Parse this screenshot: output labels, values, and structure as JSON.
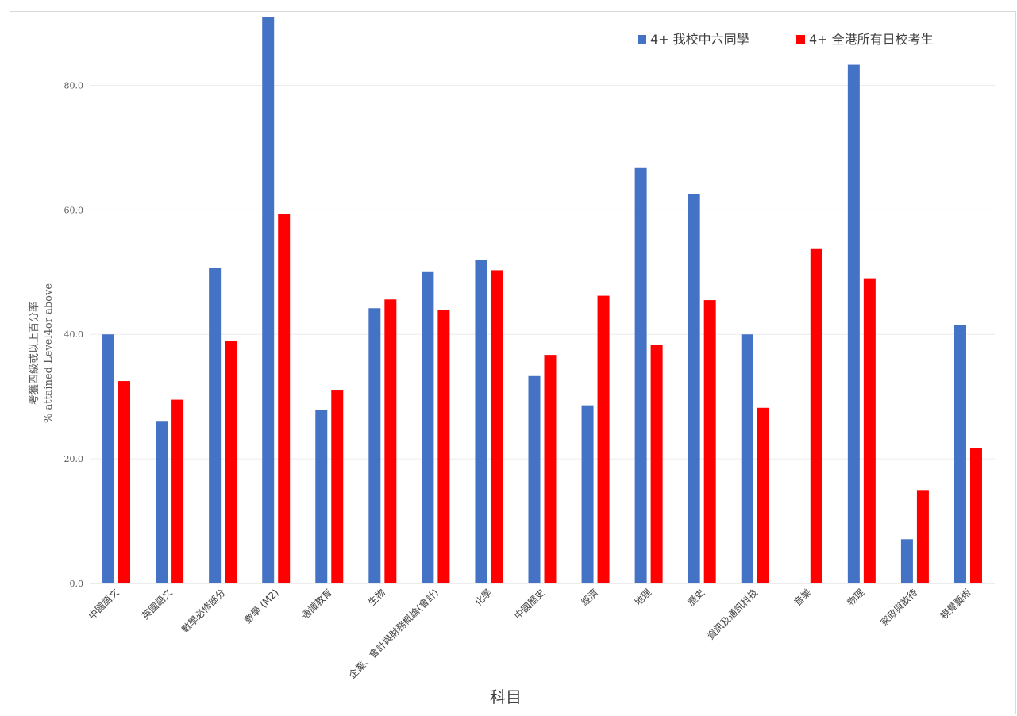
{
  "chart_data": {
    "type": "bar",
    "title": "",
    "xlabel": "科目",
    "ylabel_line1": "考獲四級或以上百分率",
    "ylabel_line2": "% attained Level4or above",
    "ylim": [
      0,
      90
    ],
    "yticks": [
      "0.0",
      "20.0",
      "40.0",
      "60.0",
      "80.0"
    ],
    "ytick_values": [
      0,
      20,
      40,
      60,
      80
    ],
    "grid": true,
    "legend_position": "top-right",
    "categories": [
      "中國語文",
      "英國語文",
      "數學必修部分",
      "數學 (M2)",
      "通識教育",
      "生物",
      "企業、會計與財務概論(會計)",
      "化學",
      "中國歷史",
      "經濟",
      "地理",
      "歷史",
      "資訊及通訊科技",
      "音樂",
      "物理",
      "家政與飲待",
      "視覺藝術"
    ],
    "series": [
      {
        "name": "4+ 我校中六同學",
        "color": "#4472c4",
        "values": [
          40.0,
          26.1,
          50.7,
          90.9,
          27.8,
          44.2,
          50.0,
          51.9,
          33.3,
          28.6,
          66.7,
          62.5,
          40.0,
          0,
          83.3,
          7.1,
          41.5
        ]
      },
      {
        "name": "4+ 全港所有日校考生",
        "color": "#ff0000",
        "values": [
          32.5,
          29.5,
          38.9,
          59.3,
          31.1,
          45.6,
          43.9,
          50.3,
          36.7,
          46.2,
          38.3,
          45.5,
          28.2,
          53.7,
          49.0,
          15.0,
          21.8
        ]
      }
    ]
  }
}
